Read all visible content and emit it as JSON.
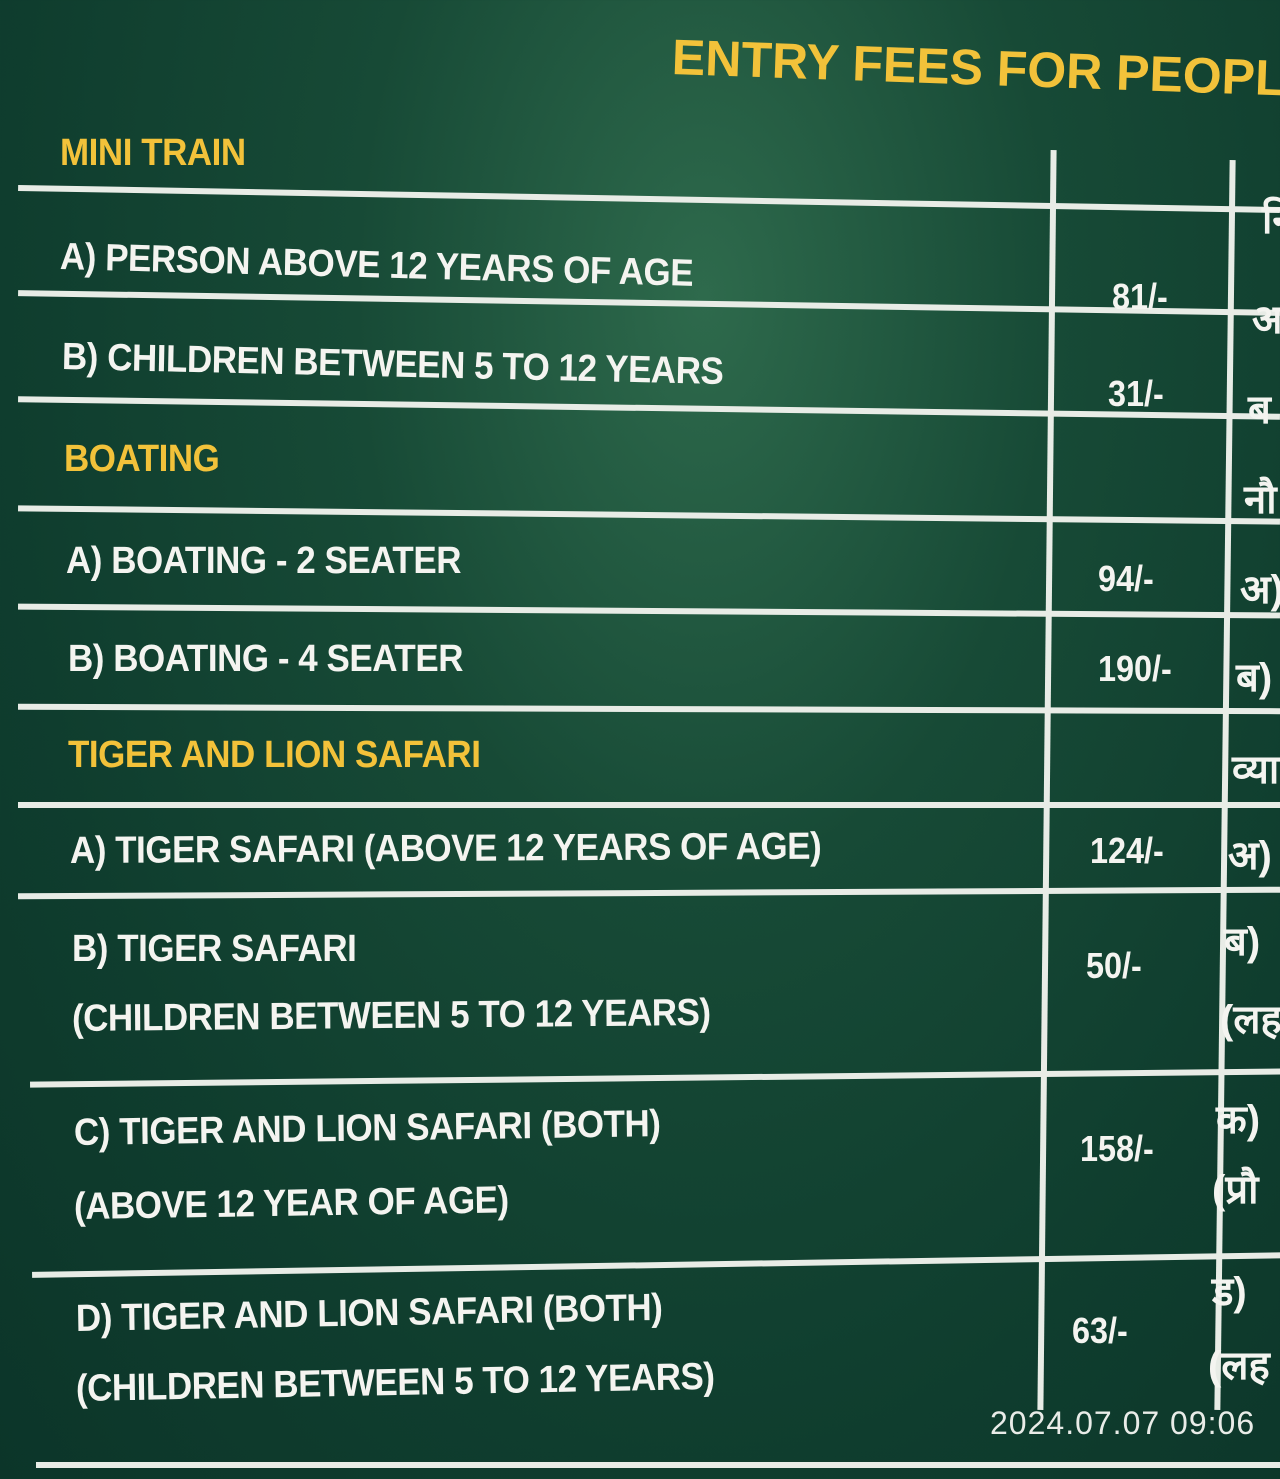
{
  "title": "ENTRY FEES FOR PEOPL",
  "sections": [
    {
      "heading": "MINI TRAIN",
      "hindi_heading": "नि",
      "rows": [
        {
          "label": "A) PERSON ABOVE 12 YEARS OF AGE",
          "price": "81/-",
          "hindi": "अ"
        },
        {
          "label": "B) CHILDREN BETWEEN 5 TO 12 YEARS",
          "price": "31/-",
          "hindi": "ब"
        }
      ]
    },
    {
      "heading": "BOATING",
      "hindi_heading": "नौ",
      "rows": [
        {
          "label": "A) BOATING - 2 SEATER",
          "price": "94/-",
          "hindi": "अ)"
        },
        {
          "label": "B) BOATING - 4 SEATER",
          "price": "190/-",
          "hindi": "ब)"
        }
      ]
    },
    {
      "heading": "TIGER AND LION SAFARI",
      "hindi_heading": "व्या",
      "rows": [
        {
          "label": "A) TIGER SAFARI (ABOVE 12 YEARS OF AGE)",
          "price": "124/-",
          "hindi": "अ)"
        },
        {
          "label": "B) TIGER SAFARI",
          "label2": "(CHILDREN BETWEEN 5 TO 12 YEARS)",
          "price": "50/-",
          "hindi": "ब)",
          "hindi2": "(लह"
        },
        {
          "label": "C) TIGER AND LION SAFARI (BOTH)",
          "label2": "(ABOVE 12 YEAR OF AGE)",
          "price": "158/-",
          "hindi": "क)",
          "hindi2": "(प्रौ"
        },
        {
          "label": "D) TIGER AND LION SAFARI (BOTH)",
          "label2": "(CHILDREN BETWEEN 5 TO 12 YEARS)",
          "price": "63/-",
          "hindi": "ड)",
          "hindi2": "(लह"
        }
      ]
    }
  ],
  "timestamp": "2024.07.07 09:06",
  "colors": {
    "board": "#0f3d2e",
    "heading": "#f2c23a",
    "text": "#f4f4f0"
  }
}
